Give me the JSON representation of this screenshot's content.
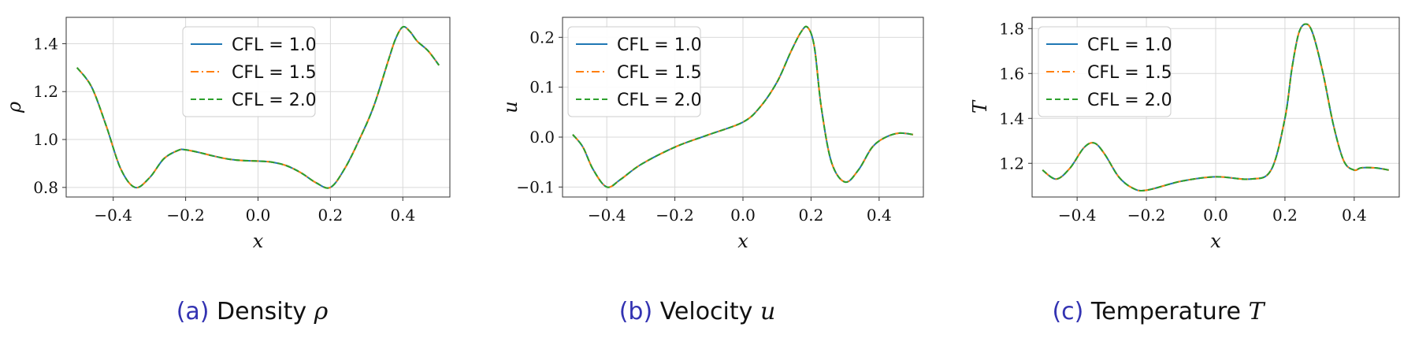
{
  "chart_data": [
    {
      "type": "line",
      "xlabel": "x",
      "ylabel": "ρ",
      "xlim": [
        -0.53,
        0.53
      ],
      "ylim": [
        0.76,
        1.51
      ],
      "xticks": [
        -0.4,
        -0.2,
        0.0,
        0.2,
        0.4
      ],
      "xtick_labels": [
        "−0.4",
        "−0.2",
        "0.0",
        "0.2",
        "0.4"
      ],
      "yticks": [
        0.8,
        1.0,
        1.2,
        1.4
      ],
      "ytick_labels": [
        "0.8",
        "1.0",
        "1.2",
        "1.4"
      ],
      "grid": true,
      "legend": "top-center",
      "x": [
        -0.5,
        -0.46,
        -0.42,
        -0.38,
        -0.34,
        -0.3,
        -0.26,
        -0.22,
        -0.2,
        -0.16,
        -0.12,
        -0.08,
        -0.04,
        0.0,
        0.04,
        0.08,
        0.12,
        0.16,
        0.2,
        0.24,
        0.28,
        0.32,
        0.36,
        0.38,
        0.4,
        0.42,
        0.44,
        0.47,
        0.5
      ],
      "series": [
        {
          "name": "CFL = 1.0",
          "color": "#1f77b4",
          "dash": "solid",
          "values": [
            1.3,
            1.22,
            1.06,
            0.88,
            0.8,
            0.84,
            0.92,
            0.955,
            0.957,
            0.945,
            0.93,
            0.918,
            0.912,
            0.91,
            0.905,
            0.89,
            0.86,
            0.82,
            0.8,
            0.88,
            1.0,
            1.14,
            1.33,
            1.42,
            1.47,
            1.45,
            1.41,
            1.37,
            1.31
          ]
        },
        {
          "name": "CFL = 1.5",
          "color": "#ff7f0e",
          "dash": "dashdot",
          "values": [
            1.3,
            1.22,
            1.06,
            0.88,
            0.8,
            0.84,
            0.92,
            0.955,
            0.957,
            0.945,
            0.93,
            0.918,
            0.912,
            0.91,
            0.905,
            0.89,
            0.86,
            0.82,
            0.8,
            0.88,
            1.0,
            1.14,
            1.33,
            1.42,
            1.47,
            1.45,
            1.41,
            1.37,
            1.31
          ]
        },
        {
          "name": "CFL = 2.0",
          "color": "#2ca02c",
          "dash": "dashed",
          "values": [
            1.3,
            1.22,
            1.06,
            0.88,
            0.8,
            0.84,
            0.92,
            0.955,
            0.957,
            0.945,
            0.93,
            0.918,
            0.912,
            0.91,
            0.905,
            0.89,
            0.86,
            0.82,
            0.8,
            0.88,
            1.0,
            1.14,
            1.33,
            1.42,
            1.47,
            1.45,
            1.41,
            1.37,
            1.31
          ]
        }
      ]
    },
    {
      "type": "line",
      "xlabel": "x",
      "ylabel": "u",
      "xlim": [
        -0.53,
        0.53
      ],
      "ylim": [
        -0.12,
        0.24
      ],
      "xticks": [
        -0.4,
        -0.2,
        0.0,
        0.2,
        0.4
      ],
      "xtick_labels": [
        "−0.4",
        "−0.2",
        "0.0",
        "0.2",
        "0.4"
      ],
      "yticks": [
        -0.1,
        0.0,
        0.1,
        0.2
      ],
      "ytick_labels": [
        "−0.1",
        "0.0",
        "0.1",
        "0.2"
      ],
      "grid": true,
      "legend": "top-left",
      "x": [
        -0.5,
        -0.47,
        -0.44,
        -0.4,
        -0.36,
        -0.3,
        -0.2,
        -0.1,
        0.0,
        0.05,
        0.1,
        0.14,
        0.17,
        0.19,
        0.21,
        0.23,
        0.26,
        0.3,
        0.34,
        0.38,
        0.42,
        0.46,
        0.5
      ],
      "series": [
        {
          "name": "CFL = 1.0",
          "color": "#1f77b4",
          "dash": "solid",
          "values": [
            0.005,
            -0.02,
            -0.065,
            -0.1,
            -0.085,
            -0.055,
            -0.02,
            0.005,
            0.03,
            0.06,
            0.11,
            0.17,
            0.21,
            0.22,
            0.18,
            0.06,
            -0.05,
            -0.09,
            -0.065,
            -0.02,
            0.0,
            0.008,
            0.005
          ]
        },
        {
          "name": "CFL = 1.5",
          "color": "#ff7f0e",
          "dash": "dashdot",
          "values": [
            0.005,
            -0.02,
            -0.065,
            -0.1,
            -0.085,
            -0.055,
            -0.02,
            0.005,
            0.03,
            0.06,
            0.11,
            0.17,
            0.21,
            0.22,
            0.18,
            0.06,
            -0.05,
            -0.09,
            -0.065,
            -0.02,
            0.0,
            0.008,
            0.005
          ]
        },
        {
          "name": "CFL = 2.0",
          "color": "#2ca02c",
          "dash": "dashed",
          "values": [
            0.005,
            -0.02,
            -0.065,
            -0.1,
            -0.085,
            -0.055,
            -0.02,
            0.005,
            0.03,
            0.06,
            0.11,
            0.17,
            0.21,
            0.22,
            0.18,
            0.06,
            -0.05,
            -0.09,
            -0.065,
            -0.02,
            0.0,
            0.008,
            0.005
          ]
        }
      ]
    },
    {
      "type": "line",
      "xlabel": "x",
      "ylabel": "T",
      "xlim": [
        -0.53,
        0.53
      ],
      "ylim": [
        1.05,
        1.85
      ],
      "xticks": [
        -0.4,
        -0.2,
        0.0,
        0.2,
        0.4
      ],
      "xtick_labels": [
        "−0.4",
        "−0.2",
        "0.0",
        "0.2",
        "0.4"
      ],
      "yticks": [
        1.2,
        1.4,
        1.6,
        1.8
      ],
      "ytick_labels": [
        "1.2",
        "1.4",
        "1.6",
        "1.8"
      ],
      "grid": true,
      "legend": "top-left",
      "x": [
        -0.5,
        -0.46,
        -0.42,
        -0.38,
        -0.35,
        -0.32,
        -0.28,
        -0.24,
        -0.2,
        -0.1,
        0.0,
        0.1,
        0.16,
        0.2,
        0.22,
        0.24,
        0.26,
        0.28,
        0.31,
        0.34,
        0.37,
        0.4,
        0.42,
        0.46,
        0.5
      ],
      "series": [
        {
          "name": "CFL = 1.0",
          "color": "#1f77b4",
          "dash": "solid",
          "values": [
            1.17,
            1.13,
            1.18,
            1.27,
            1.29,
            1.24,
            1.14,
            1.09,
            1.08,
            1.12,
            1.14,
            1.13,
            1.17,
            1.4,
            1.62,
            1.78,
            1.82,
            1.78,
            1.6,
            1.37,
            1.21,
            1.17,
            1.18,
            1.18,
            1.17
          ]
        },
        {
          "name": "CFL = 1.5",
          "color": "#ff7f0e",
          "dash": "dashdot",
          "values": [
            1.17,
            1.13,
            1.18,
            1.27,
            1.29,
            1.24,
            1.14,
            1.09,
            1.08,
            1.12,
            1.14,
            1.13,
            1.17,
            1.4,
            1.62,
            1.78,
            1.82,
            1.78,
            1.6,
            1.37,
            1.21,
            1.17,
            1.18,
            1.18,
            1.17
          ]
        },
        {
          "name": "CFL = 2.0",
          "color": "#2ca02c",
          "dash": "dashed",
          "values": [
            1.17,
            1.13,
            1.18,
            1.27,
            1.29,
            1.24,
            1.14,
            1.09,
            1.08,
            1.12,
            1.14,
            1.13,
            1.17,
            1.4,
            1.62,
            1.78,
            1.82,
            1.78,
            1.6,
            1.37,
            1.21,
            1.17,
            1.18,
            1.18,
            1.17
          ]
        }
      ]
    }
  ],
  "captions": [
    {
      "label": "(a)",
      "text": "Density",
      "symbol": "ρ"
    },
    {
      "label": "(b)",
      "text": "Velocity",
      "symbol": "u"
    },
    {
      "label": "(c)",
      "text": "Temperature",
      "symbol": "T"
    }
  ]
}
